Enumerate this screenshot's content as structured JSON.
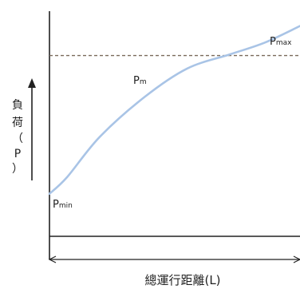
{
  "chart_data": {
    "type": "line",
    "title": "",
    "xlabel": "總運行距離(L)",
    "ylabel_chars": [
      "負",
      "荷",
      "（",
      "P",
      "）"
    ],
    "xlim": [
      0,
      1
    ],
    "ylim": [
      0,
      1
    ],
    "grid": false,
    "series": [
      {
        "x": [
          0.0,
          0.07,
          0.2,
          0.38,
          0.55,
          0.72,
          0.86,
          1.0
        ],
        "y": [
          0.18,
          0.25,
          0.42,
          0.59,
          0.71,
          0.77,
          0.82,
          0.89
        ]
      }
    ],
    "reference_line": {
      "y": 0.765,
      "style": "dashed",
      "color": "#7a6a5a"
    },
    "point_labels": [
      {
        "main": "P",
        "sub": "min",
        "x": 0.0,
        "y": 0.18
      },
      {
        "main": "P",
        "sub": "m",
        "x": 0.35,
        "y": 0.765
      },
      {
        "main": "P",
        "sub": "max",
        "x": 1.0,
        "y": 0.89
      }
    ],
    "colors": {
      "curve": "#a9c4e6",
      "axis": "#222222",
      "reference": "#7a6a5a"
    }
  }
}
